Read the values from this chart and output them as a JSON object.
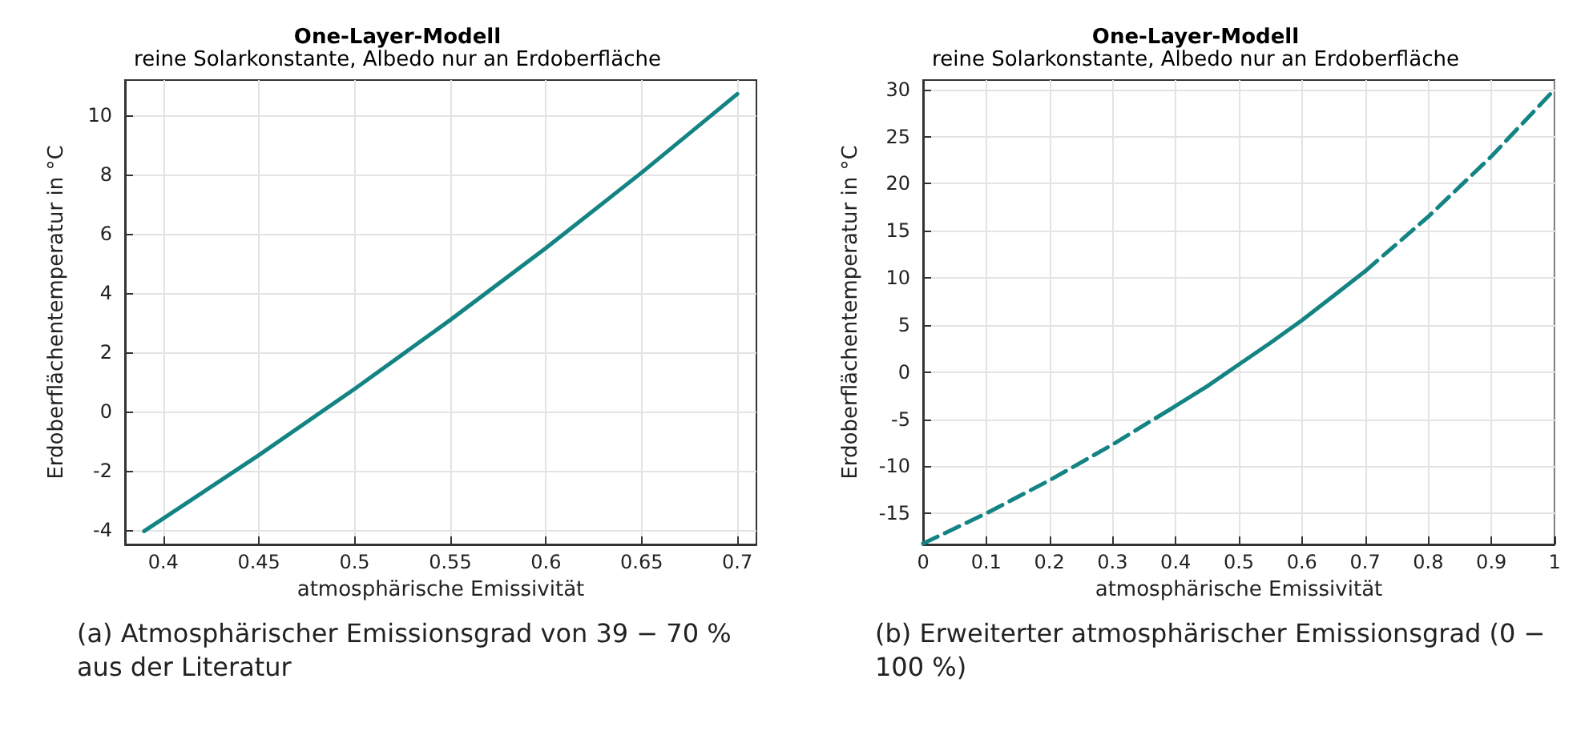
{
  "chart_data": [
    {
      "type": "line",
      "title": "One-Layer-Modell",
      "subtitle": "reine Solarkonstante, Albedo nur an Erdoberfläche",
      "xlabel": "atmosphärische Emissivität",
      "ylabel": "Erdoberflächentemperatur in °C",
      "xlim": [
        0.38,
        0.71
      ],
      "xticks": [
        0.4,
        0.45,
        0.5,
        0.55,
        0.6,
        0.65,
        0.7
      ],
      "ylim": [
        -4.5,
        11.2
      ],
      "yticks": [
        -4,
        -2,
        0,
        2,
        4,
        6,
        8,
        10
      ],
      "grid": true,
      "marker": "none",
      "series": [
        {
          "color": "#138383",
          "line_style": "solid",
          "x": [
            0.39,
            0.45,
            0.5,
            0.55,
            0.6,
            0.65,
            0.7
          ],
          "values": [
            -4.05,
            -1.48,
            0.76,
            3.09,
            5.52,
            8.07,
            10.73
          ]
        }
      ],
      "annotations": [
        "(a) Atmosphärischer Emissionsgrad von 39 − 70 % aus der Literatur"
      ]
    },
    {
      "type": "line",
      "title": "One-Layer-Modell",
      "subtitle": "reine Solarkonstante, Albedo nur an Erdoberfläche",
      "xlabel": "atmosphärische Emissivität",
      "ylabel": "Erdoberflächentemperatur in °C",
      "xlim": [
        0,
        1
      ],
      "xticks": [
        0,
        0.1,
        0.2,
        0.3,
        0.4,
        0.5,
        0.6,
        0.7,
        0.8,
        0.9,
        1
      ],
      "ylim": [
        -18.3,
        31
      ],
      "yticks": [
        -15,
        -10,
        -5,
        0,
        5,
        10,
        15,
        20,
        25,
        30
      ],
      "grid": true,
      "marker": "none",
      "series": [
        {
          "color": "#138383",
          "line_style": "dashed",
          "x": [
            0,
            0.1,
            0.2,
            0.3,
            0.39
          ],
          "values": [
            -18.2,
            -15,
            -11.5,
            -7.7,
            -4
          ]
        },
        {
          "color": "#138383",
          "line_style": "solid",
          "x": [
            0.39,
            0.45,
            0.5,
            0.55,
            0.6,
            0.65,
            0.7
          ],
          "values": [
            -4,
            -1.5,
            0.8,
            3.1,
            5.5,
            8.1,
            10.7
          ]
        },
        {
          "color": "#138383",
          "line_style": "dashed",
          "x": [
            0.7,
            0.8,
            0.9,
            1
          ],
          "values": [
            10.7,
            16.5,
            22.9,
            30
          ]
        }
      ],
      "annotations": [
        "(b) Erweiterter atmosphärischer Emissionsgrad (0 − 100 %)"
      ]
    }
  ]
}
